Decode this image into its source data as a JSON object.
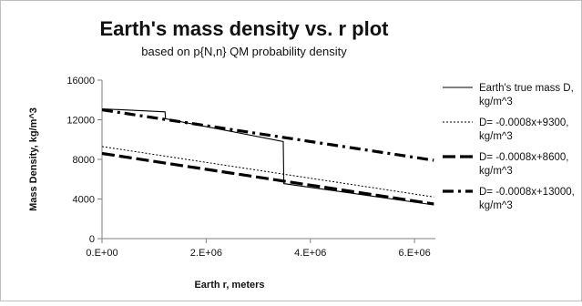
{
  "chart_data": {
    "type": "line",
    "title": "Earth's mass density vs. r plot",
    "subtitle": "based on p{N,n} QM probability density",
    "xlabel": "Earth r, meters",
    "ylabel": "Mass Density, kg/m^3",
    "xlim": [
      0,
      6400000
    ],
    "ylim": [
      0,
      16000
    ],
    "xticks": [
      0,
      2000000,
      4000000,
      6000000
    ],
    "xtick_labels": [
      "0.E+00",
      "2.E+06",
      "4.E+06",
      "6.E+06"
    ],
    "yticks": [
      0,
      4000,
      8000,
      12000,
      16000
    ],
    "ytick_labels": [
      "0",
      "4000",
      "8000",
      "12000",
      "16000"
    ],
    "grid": false,
    "legend_position": "right",
    "series": [
      {
        "name": "Earth's true mass D, kg/m^3",
        "legend_lines": [
          "Earth's true mass D,",
          "kg/m^3"
        ],
        "style": "solid-thin",
        "points": [
          [
            0,
            13100
          ],
          [
            1210000,
            12800
          ],
          [
            1220000,
            12100
          ],
          [
            3480000,
            9800
          ],
          [
            3490000,
            5550
          ],
          [
            6370000,
            3400
          ]
        ]
      },
      {
        "name": "D= -0.0008x+9300, kg/m^3",
        "legend_lines": [
          "D= -0.0008x+9300,",
          "kg/m^3"
        ],
        "style": "dotted-thin",
        "points": [
          [
            0,
            9300
          ],
          [
            6370000,
            4204
          ]
        ]
      },
      {
        "name": "D= -0.0008x+8600, kg/m^3",
        "legend_lines": [
          "D= -0.0008x+8600,",
          "kg/m^3"
        ],
        "style": "long-dash-thick",
        "points": [
          [
            0,
            8600
          ],
          [
            6370000,
            3504
          ]
        ]
      },
      {
        "name": "D= -0.0008x+13000, kg/m^3",
        "legend_lines": [
          "D= -0.0008x+13000,",
          "kg/m^3"
        ],
        "style": "dash-dot-thick",
        "points": [
          [
            0,
            13000
          ],
          [
            6370000,
            7904
          ]
        ]
      }
    ]
  }
}
